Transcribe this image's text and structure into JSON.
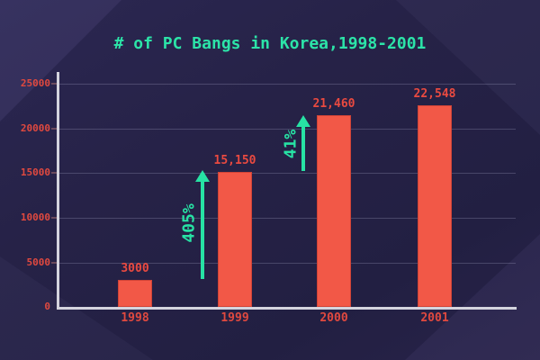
{
  "title": "# of PC Bangs in Korea,1998-2001",
  "chart_data": {
    "type": "bar",
    "title": "# of PC Bangs in Korea,1998-2001",
    "categories": [
      "1998",
      "1999",
      "2000",
      "2001"
    ],
    "values": [
      3000,
      15150,
      21460,
      22548
    ],
    "value_labels": [
      "3000",
      "15,150",
      "21,460",
      "22,548"
    ],
    "xlabel": "",
    "ylabel": "",
    "ylim": [
      0,
      25000
    ],
    "y_ticks": [
      "0",
      "5000",
      "10000",
      "15000",
      "20000",
      "25000"
    ],
    "grid": true,
    "legend": false,
    "annotations": [
      {
        "label": "405%",
        "type": "arrow-up",
        "between": [
          "1998",
          "1999"
        ]
      },
      {
        "label": "41%",
        "type": "arrow-up",
        "between": [
          "1999",
          "2000"
        ]
      }
    ],
    "colors": {
      "background": "#262247",
      "bar_fill": "#f25847",
      "bar_border": "#d04437",
      "red_label": "#e64a40",
      "teal_accent": "#27e2a4",
      "axis_line": "#d4d4de"
    }
  }
}
